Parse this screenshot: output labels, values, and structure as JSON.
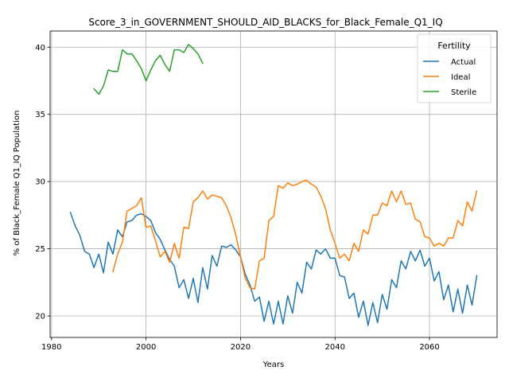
{
  "chart_data": {
    "type": "line",
    "title": "Score_3_in_GOVERNMENT_SHOULD_AID_BLACKS_for_Black_Female_Q1_IQ",
    "xlabel": "Years",
    "ylabel": "% of Black_Female Q1_IQ Population",
    "xlim": [
      1979.7,
      2074.3
    ],
    "ylim": [
      18.4,
      41.2
    ],
    "xticks": [
      1980,
      2000,
      2020,
      2040,
      2060
    ],
    "yticks": [
      20,
      25,
      30,
      35,
      40
    ],
    "grid": true,
    "legend": {
      "title": "Fertility",
      "position": "top-right"
    },
    "series": [
      {
        "name": "Actual",
        "color": "#1f77b4",
        "x": [
          1984,
          1985,
          1986,
          1987,
          1988,
          1989,
          1990,
          1991,
          1992,
          1993,
          1994,
          1995,
          1996,
          1997,
          1998,
          1999,
          2000,
          2001,
          2002,
          2003,
          2004,
          2005,
          2006,
          2007,
          2008,
          2009,
          2010,
          2011,
          2012,
          2013,
          2014,
          2015,
          2016,
          2017,
          2018,
          2019,
          2020,
          2021,
          2022,
          2023,
          2024,
          2025,
          2026,
          2027,
          2028,
          2029,
          2030,
          2031,
          2032,
          2033,
          2034,
          2035,
          2036,
          2037,
          2038,
          2039,
          2040,
          2041,
          2042,
          2043,
          2044,
          2045,
          2046,
          2047,
          2048,
          2049,
          2050,
          2051,
          2052,
          2053,
          2054,
          2055,
          2056,
          2057,
          2058,
          2059,
          2060,
          2061,
          2062,
          2063,
          2064,
          2065,
          2066,
          2067,
          2068,
          2069,
          2070
        ],
        "y": [
          27.7,
          26.7,
          26.0,
          24.8,
          24.6,
          23.6,
          24.6,
          23.2,
          25.5,
          24.6,
          26.4,
          25.9,
          27.0,
          27.1,
          27.5,
          27.6,
          27.4,
          27.1,
          26.2,
          25.7,
          24.9,
          24.2,
          23.7,
          22.1,
          22.7,
          21.3,
          22.8,
          21.0,
          23.6,
          22.0,
          24.5,
          23.7,
          25.2,
          25.1,
          25.3,
          24.9,
          24.4,
          23.1,
          22.3,
          21.1,
          21.4,
          19.6,
          21.1,
          19.4,
          21.1,
          19.4,
          21.5,
          20.2,
          22.5,
          21.7,
          24.0,
          23.5,
          24.9,
          24.6,
          25.0,
          24.3,
          24.3,
          23.0,
          22.9,
          21.3,
          21.7,
          19.9,
          21.1,
          19.3,
          21.0,
          19.5,
          21.6,
          20.5,
          22.7,
          22.1,
          24.1,
          23.5,
          24.8,
          24.1,
          24.9,
          23.7,
          24.3,
          22.6,
          23.3,
          21.2,
          22.3,
          20.3,
          22.0,
          20.2,
          22.3,
          20.8,
          23.0
        ]
      },
      {
        "name": "Ideal",
        "color": "#ff7f0e",
        "x": [
          1993,
          1994,
          1995,
          1996,
          1997,
          1998,
          1999,
          2000,
          2001,
          2002,
          2003,
          2004,
          2005,
          2006,
          2007,
          2008,
          2009,
          2010,
          2011,
          2012,
          2013,
          2014,
          2015,
          2016,
          2017,
          2018,
          2019,
          2020,
          2021,
          2022,
          2023,
          2024,
          2025,
          2026,
          2027,
          2028,
          2029,
          2030,
          2031,
          2032,
          2033,
          2034,
          2035,
          2036,
          2037,
          2038,
          2039,
          2040,
          2041,
          2042,
          2043,
          2044,
          2045,
          2046,
          2047,
          2048,
          2049,
          2050,
          2051,
          2052,
          2053,
          2054,
          2055,
          2056,
          2057,
          2058,
          2059,
          2060,
          2061,
          2062,
          2063,
          2064,
          2065,
          2066,
          2067,
          2068,
          2069,
          2070
        ],
        "y": [
          23.3,
          24.6,
          25.5,
          27.8,
          28.0,
          28.2,
          28.8,
          26.6,
          26.7,
          25.6,
          24.4,
          24.8,
          24.0,
          25.4,
          24.3,
          26.6,
          26.5,
          28.5,
          28.8,
          29.3,
          28.7,
          29.0,
          28.9,
          28.8,
          28.2,
          27.3,
          26.0,
          24.4,
          22.8,
          22.1,
          22.0,
          24.1,
          24.3,
          27.1,
          27.4,
          29.7,
          29.5,
          29.9,
          29.7,
          29.8,
          30.0,
          30.1,
          29.8,
          29.6,
          28.9,
          28.0,
          26.4,
          25.4,
          24.3,
          24.6,
          24.1,
          25.4,
          24.8,
          26.4,
          26.1,
          27.5,
          27.5,
          28.4,
          28.2,
          29.3,
          28.5,
          29.3,
          28.3,
          28.4,
          27.2,
          27.0,
          25.9,
          25.8,
          25.2,
          25.4,
          25.2,
          25.8,
          25.8,
          27.1,
          26.7,
          28.5,
          27.8,
          29.3
        ]
      },
      {
        "name": "Sterile",
        "color": "#2ca02c",
        "x": [
          1989,
          1990,
          1991,
          1992,
          1993,
          1994,
          1995,
          1996,
          1997,
          1998,
          1999,
          2000,
          2001,
          2002,
          2003,
          2004,
          2005,
          2006,
          2007,
          2008,
          2009,
          2010,
          2011,
          2012
        ],
        "y": [
          36.9,
          36.5,
          37.1,
          38.3,
          38.2,
          38.2,
          39.8,
          39.5,
          39.5,
          39.0,
          38.4,
          37.5,
          38.3,
          39.0,
          39.4,
          38.7,
          38.2,
          39.8,
          39.8,
          39.6,
          40.2,
          39.9,
          39.5,
          38.8
        ]
      }
    ]
  }
}
